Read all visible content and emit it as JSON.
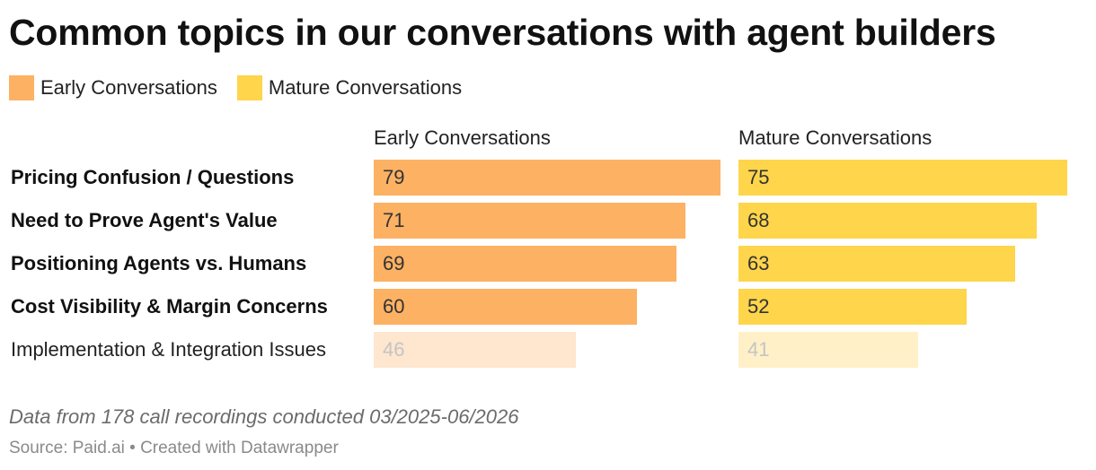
{
  "title": "Common topics in our conversations with agent builders",
  "legend": [
    {
      "label": "Early Conversations",
      "color": "#fdb163"
    },
    {
      "label": "Mature Conversations",
      "color": "#fed54b"
    }
  ],
  "chart_data": {
    "type": "bar",
    "orientation": "horizontal",
    "title": "Common topics in our conversations with agent builders",
    "categories": [
      "Pricing Confusion / Questions",
      "Need to Prove Agent's Value",
      "Positioning Agents vs. Humans",
      "Cost Visibility & Margin Concerns",
      "Implementation & Integration Issues"
    ],
    "highlighted_categories": [
      "Pricing Confusion / Questions",
      "Need to Prove Agent's Value",
      "Positioning Agents vs. Humans",
      "Cost Visibility & Margin Concerns"
    ],
    "series": [
      {
        "name": "Early Conversations",
        "values": [
          79,
          71,
          69,
          60,
          46
        ],
        "color": "#fdb163",
        "faded_color": "#fee6cf"
      },
      {
        "name": "Mature Conversations",
        "values": [
          75,
          68,
          63,
          52,
          41
        ],
        "color": "#fed54b",
        "faded_color": "#fff0c7"
      }
    ],
    "xlim": [
      0,
      79
    ],
    "legend_position": "top-left",
    "grid": false
  },
  "notes": "Data from 178 call recordings conducted 03/2025-06/2026",
  "source": "Source: Paid.ai • Created with Datawrapper"
}
